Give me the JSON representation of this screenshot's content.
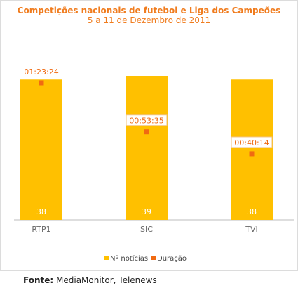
{
  "source": {
    "label": "Fonte:",
    "text": "MediaMonitor, Telenews"
  },
  "chart_data": {
    "type": "bar",
    "title": "Competições nacionais de futebol e Liga dos Campeões",
    "subtitle": "5 a 11 de Dezembro de 2011",
    "categories": [
      "RTP1",
      "SIC",
      "TVI"
    ],
    "series": [
      {
        "name": "Nº notícias",
        "type": "bar",
        "values": [
          38,
          39,
          38
        ],
        "labels": [
          "38",
          "39",
          "38"
        ],
        "color": "#ffc000"
      },
      {
        "name": "Duração",
        "type": "scatter",
        "values": [
          "01:23:24",
          "00:53:35",
          "00:40:14"
        ],
        "labels": [
          "01:23:24",
          "00:53:35",
          "00:40:14"
        ],
        "color": "#f06a12"
      }
    ],
    "legend_position": "bottom-center",
    "grid": false,
    "colors": {
      "title": "#f07c1e",
      "bar": "#ffc000",
      "marker": "#f06a12",
      "axis": "#bdbdbd",
      "label_text": "#666666"
    }
  }
}
